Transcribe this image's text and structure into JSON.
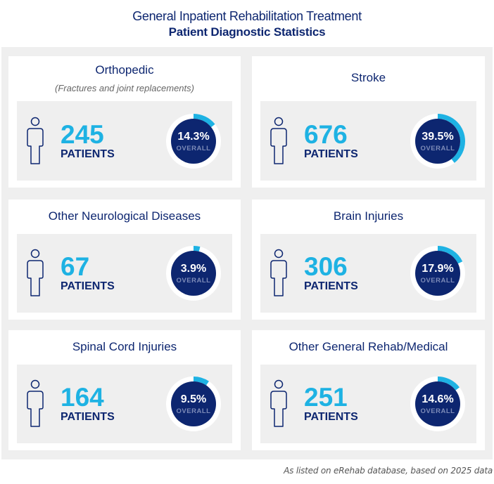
{
  "header": {
    "title": "General Inpatient Rehabilitation Treatment",
    "subtitle": "Patient Diagnostic Statistics"
  },
  "colors": {
    "navy": "#0d2670",
    "accent_cyan": "#1eb2e3",
    "panel_gray": "#efefef",
    "card_white": "#ffffff",
    "overall_text": "#7d8bb8"
  },
  "cards": [
    {
      "title": "Orthopedic",
      "subtitle": "(Fractures and joint replacements)",
      "count": "245",
      "count_label": "PATIENTS",
      "percent": "14.3%",
      "percent_value": 14.3,
      "overall_label": "OVERALL",
      "icon": "person-outline-icon"
    },
    {
      "title": "Stroke",
      "subtitle": "",
      "count": "676",
      "count_label": "PATIENTS",
      "percent": "39.5%",
      "percent_value": 39.5,
      "overall_label": "OVERALL",
      "icon": "person-outline-icon"
    },
    {
      "title": "Other Neurological Diseases",
      "subtitle": "",
      "count": "67",
      "count_label": "PATIENTS",
      "percent": "3.9%",
      "percent_value": 3.9,
      "overall_label": "OVERALL",
      "icon": "person-outline-icon"
    },
    {
      "title": "Brain Injuries",
      "subtitle": "",
      "count": "306",
      "count_label": "PATIENTS",
      "percent": "17.9%",
      "percent_value": 17.9,
      "overall_label": "OVERALL",
      "icon": "person-outline-icon"
    },
    {
      "title": "Spinal Cord Injuries",
      "subtitle": "",
      "count": "164",
      "count_label": "PATIENTS",
      "percent": "9.5%",
      "percent_value": 9.5,
      "overall_label": "OVERALL",
      "icon": "person-outline-icon"
    },
    {
      "title": "Other General Rehab/Medical",
      "subtitle": "",
      "count": "251",
      "count_label": "PATIENTS",
      "percent": "14.6%",
      "percent_value": 14.6,
      "overall_label": "OVERALL",
      "icon": "person-outline-icon"
    }
  ],
  "footer": {
    "note": "As listed on eRehab database, based on 2025 data"
  }
}
